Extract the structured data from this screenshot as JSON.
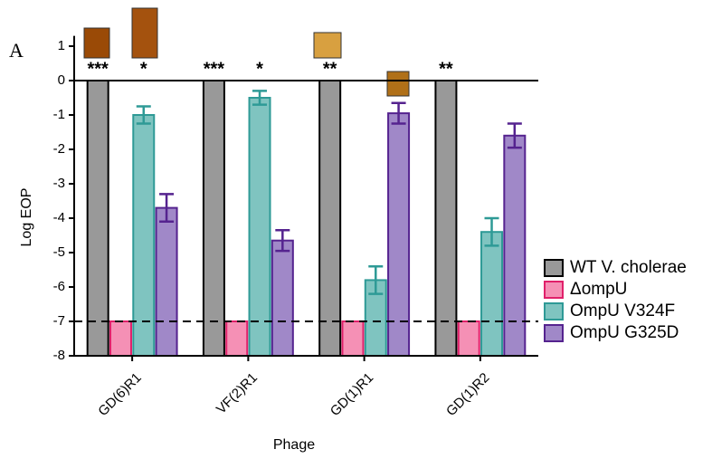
{
  "chart_data": {
    "type": "bar",
    "panel_label": "A",
    "y_label": "Log EOP",
    "x_label": "Phage",
    "categories": [
      "GD(6)R1",
      "VF(2)R1",
      "GD(1)R1",
      "GD(1)R2"
    ],
    "series": [
      {
        "name": "WT V. cholerae",
        "color": "#999999",
        "edge": "#000000",
        "values": [
          0,
          0,
          0,
          0
        ],
        "labels": [
          "***",
          "***",
          "**",
          "**"
        ]
      },
      {
        "name": "ΔompU",
        "color": "#f590b5",
        "edge": "#e0206a",
        "values": [
          -7,
          -7,
          -7,
          -7
        ]
      },
      {
        "name": "OmpU V324F",
        "color": "#7fc4c0",
        "edge": "#2e9a96",
        "values": [
          -1.0,
          -0.5,
          -5.8,
          -4.4
        ],
        "errors": [
          0.25,
          0.2,
          0.4,
          0.4
        ],
        "labels": [
          "*",
          "*",
          null,
          null
        ]
      },
      {
        "name": "OmpU G325D",
        "color": "#a088c8",
        "edge": "#55238f",
        "values": [
          -3.7,
          -4.65,
          -0.95,
          -1.6
        ],
        "errors": [
          0.4,
          0.3,
          0.3,
          0.35
        ]
      }
    ],
    "threshold": -7,
    "ylim": [
      -8,
      1.3
    ],
    "yticks": [
      1,
      0,
      -1,
      -2,
      -3,
      -4,
      -5,
      -6,
      -7,
      -8
    ]
  }
}
